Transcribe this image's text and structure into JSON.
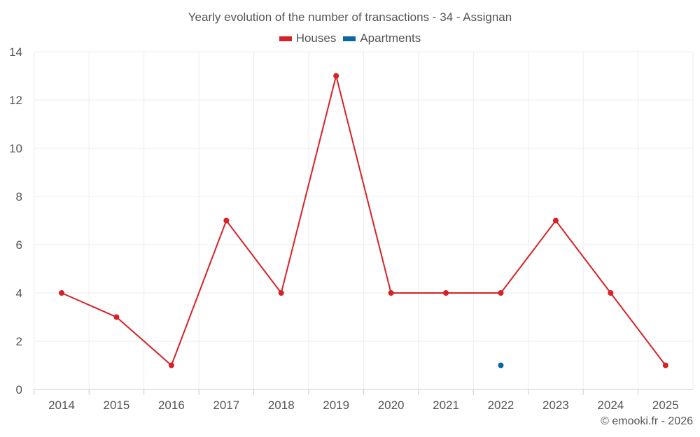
{
  "chart_data": {
    "type": "line",
    "title": "Yearly evolution of the number of transactions - 34 - Assignan",
    "categories": [
      "2014",
      "2015",
      "2016",
      "2017",
      "2018",
      "2019",
      "2020",
      "2021",
      "2022",
      "2023",
      "2024",
      "2025"
    ],
    "series": [
      {
        "name": "Houses",
        "color": "#d62226",
        "values": [
          4,
          3,
          1,
          7,
          4,
          13,
          4,
          4,
          4,
          7,
          4,
          1
        ]
      },
      {
        "name": "Apartments",
        "color": "#0a67a3",
        "values": [
          null,
          null,
          null,
          null,
          null,
          null,
          null,
          null,
          1,
          null,
          null,
          null
        ]
      }
    ],
    "yticks": [
      0,
      2,
      4,
      6,
      8,
      10,
      12,
      14
    ],
    "ylim": [
      0,
      14
    ],
    "xlabel": "",
    "ylabel": "",
    "grid": true,
    "legend": "top-center"
  },
  "credit": "© emooki.fr - 2026"
}
